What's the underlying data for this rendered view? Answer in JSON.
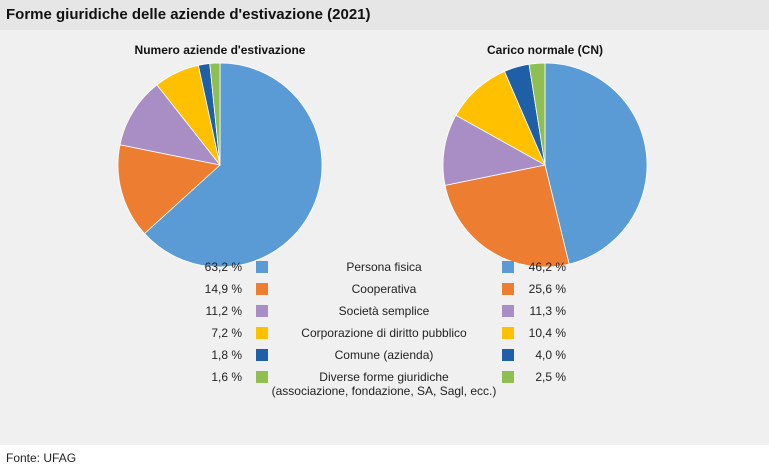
{
  "title": "Forme giuridiche delle aziende d'estivazione (2021)",
  "source": "Fonte: UFAG",
  "colors": {
    "persona": "#5b9bd5",
    "cooperativa": "#ed7d31",
    "societa": "#a98ec6",
    "corporazione": "#ffc000",
    "comune": "#1f5fa8",
    "diverse": "#8fbf52"
  },
  "chart_data": [
    {
      "type": "pie",
      "title": "Numero aziende d'estivazione",
      "categories": [
        "Persona fisica",
        "Cooperativa",
        "Società semplice",
        "Corporazione di diritto pubblico",
        "Comune (azienda)",
        "Diverse forme giuridiche (associazione, fondazione, SA, Sagl, ecc.)"
      ],
      "values": [
        63.2,
        14.9,
        11.2,
        7.2,
        1.8,
        1.6
      ],
      "value_labels": [
        "63,2 %",
        "14,9 %",
        "11,2 %",
        "7,2 %",
        "1,8 %",
        "1,6 %"
      ],
      "legend_placement": "bottom"
    },
    {
      "type": "pie",
      "title": "Carico normale (CN)",
      "categories": [
        "Persona fisica",
        "Cooperativa",
        "Società semplice",
        "Corporazione di diritto pubblico",
        "Comune (azienda)",
        "Diverse forme giuridiche (associazione, fondazione, SA, Sagl, ecc.)"
      ],
      "values": [
        46.2,
        25.6,
        11.3,
        10.4,
        4.0,
        2.5
      ],
      "value_labels": [
        "46,2 %",
        "25,6 %",
        "11,3 %",
        "10,4 %",
        "4,0 %",
        "2,5 %"
      ],
      "legend_placement": "bottom"
    }
  ],
  "legend": [
    {
      "label": "Persona fisica",
      "color_key": "persona"
    },
    {
      "label": "Cooperativa",
      "color_key": "cooperativa"
    },
    {
      "label": "Società semplice",
      "color_key": "societa"
    },
    {
      "label": "Corporazione di diritto pubblico",
      "color_key": "corporazione"
    },
    {
      "label": "Comune (azienda)",
      "color_key": "comune"
    },
    {
      "label": "Diverse forme giuridiche",
      "label_line2": "(associazione, fondazione, SA, Sagl, ecc.)",
      "color_key": "diverse"
    }
  ]
}
